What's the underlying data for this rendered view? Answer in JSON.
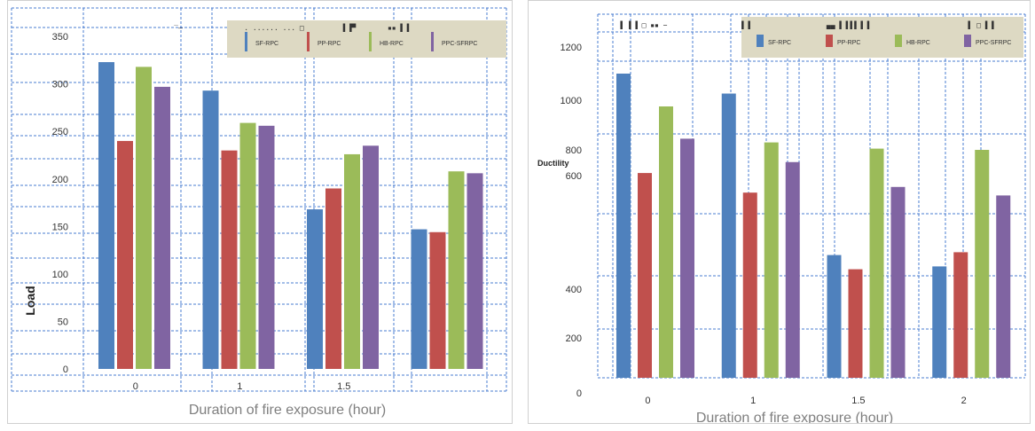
{
  "chart_data": [
    {
      "type": "bar",
      "title": "",
      "xlabel": "Duration of fire exposure (hour)",
      "ylabel": "Load",
      "ylim": [
        0,
        380
      ],
      "yticks": [
        0,
        50,
        100,
        150,
        200,
        250,
        300,
        350
      ],
      "categories": [
        "0",
        "1",
        "1.5",
        ""
      ],
      "series": [
        {
          "name": "SF-RPC",
          "color": "#4f81bd",
          "values": [
            323,
            293,
            168,
            147
          ]
        },
        {
          "name": "PP-RPC",
          "color": "#c0504d",
          "values": [
            240,
            230,
            190,
            144
          ]
        },
        {
          "name": "HB-RPC",
          "color": "#9bbb59",
          "values": [
            318,
            259,
            226,
            208
          ]
        },
        {
          "name": "PPC-SFRPC",
          "color": "#8064a2",
          "values": [
            297,
            256,
            235,
            206
          ]
        }
      ],
      "legend": "top-right",
      "grid": true
    },
    {
      "type": "bar",
      "title": "",
      "xlabel": "Duration of fire exposure (hour)",
      "ylabel": "Ductility",
      "ylim": [
        0,
        1300
      ],
      "yticks": [
        "0",
        "200",
        "400",
        "600",
        "800",
        "1000",
        "1200"
      ],
      "categories": [
        "0",
        "1",
        "1.5",
        "2"
      ],
      "series": [
        {
          "name": "SF-RPC",
          "color": "#4f81bd",
          "values": [
            1100,
            1025,
            460,
            440
          ]
        },
        {
          "name": "PP-RPC",
          "color": "#c0504d",
          "values": [
            620,
            570,
            435,
            465
          ]
        },
        {
          "name": "HB-RPC",
          "color": "#9bbb59",
          "values": [
            975,
            830,
            805,
            800
          ]
        },
        {
          "name": "PPC-SFRPC",
          "color": "#8064a2",
          "values": [
            845,
            705,
            580,
            565
          ]
        }
      ],
      "legend": "top-right",
      "grid": true
    }
  ]
}
